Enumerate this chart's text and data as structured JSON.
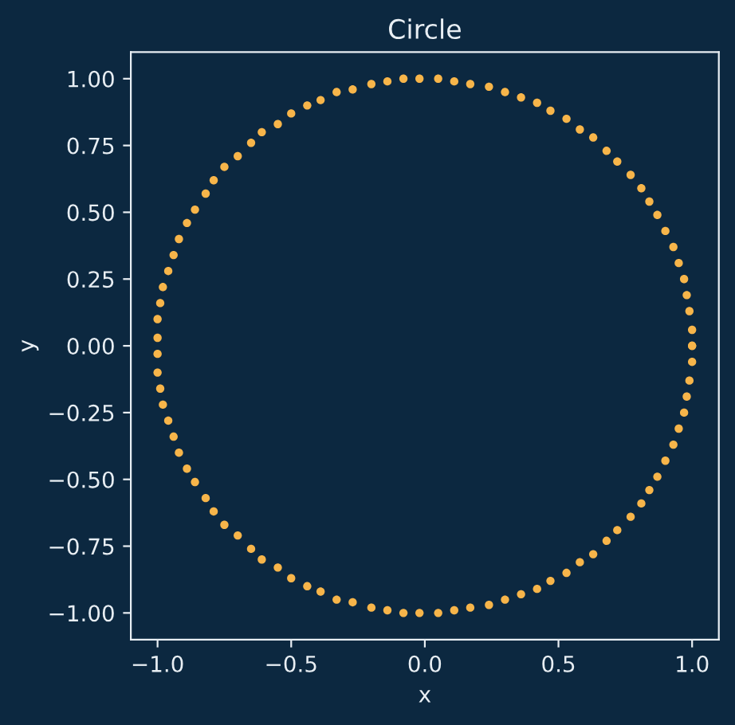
{
  "chart_data": {
    "type": "scatter",
    "title": "Circle",
    "xlabel": "x",
    "ylabel": "y",
    "series": [
      {
        "color": "#f7b54a",
        "x": [
          1.0,
          1.0,
          0.99,
          0.98,
          0.97,
          0.95,
          0.93,
          0.9,
          0.87,
          0.84,
          0.81,
          0.77,
          0.72,
          0.68,
          0.63,
          0.58,
          0.53,
          0.47,
          0.42,
          0.36,
          0.3,
          0.24,
          0.17,
          0.11,
          0.05,
          -0.02,
          -0.08,
          -0.14,
          -0.2,
          -0.27,
          -0.33,
          -0.39,
          -0.44,
          -0.5,
          -0.55,
          -0.61,
          -0.65,
          -0.7,
          -0.75,
          -0.79,
          -0.82,
          -0.86,
          -0.89,
          -0.92,
          -0.94,
          -0.96,
          -0.98,
          -0.99,
          -1.0,
          -1.0,
          -1.0,
          -1.0,
          -0.99,
          -0.98,
          -0.96,
          -0.94,
          -0.92,
          -0.89,
          -0.86,
          -0.82,
          -0.79,
          -0.75,
          -0.7,
          -0.65,
          -0.61,
          -0.55,
          -0.5,
          -0.44,
          -0.39,
          -0.33,
          -0.27,
          -0.2,
          -0.14,
          -0.08,
          -0.02,
          0.05,
          0.11,
          0.17,
          0.24,
          0.3,
          0.36,
          0.42,
          0.47,
          0.53,
          0.58,
          0.63,
          0.68,
          0.72,
          0.77,
          0.81,
          0.84,
          0.87,
          0.9,
          0.93,
          0.95,
          0.97,
          0.98,
          0.99,
          1.0,
          1.0
        ],
        "values": [
          0.0,
          0.06,
          0.13,
          0.19,
          0.25,
          0.31,
          0.37,
          0.43,
          0.49,
          0.54,
          0.59,
          0.64,
          0.69,
          0.73,
          0.78,
          0.81,
          0.85,
          0.88,
          0.91,
          0.93,
          0.95,
          0.97,
          0.98,
          0.99,
          1.0,
          1.0,
          1.0,
          0.99,
          0.98,
          0.96,
          0.95,
          0.92,
          0.9,
          0.87,
          0.83,
          0.8,
          0.76,
          0.71,
          0.67,
          0.62,
          0.57,
          0.51,
          0.46,
          0.4,
          0.34,
          0.28,
          0.22,
          0.16,
          0.1,
          0.03,
          -0.03,
          -0.1,
          -0.16,
          -0.22,
          -0.28,
          -0.34,
          -0.4,
          -0.46,
          -0.51,
          -0.57,
          -0.62,
          -0.67,
          -0.71,
          -0.76,
          -0.8,
          -0.83,
          -0.87,
          -0.9,
          -0.92,
          -0.95,
          -0.96,
          -0.98,
          -0.99,
          -1.0,
          -1.0,
          -1.0,
          -0.99,
          -0.98,
          -0.97,
          -0.95,
          -0.93,
          -0.91,
          -0.88,
          -0.85,
          -0.81,
          -0.78,
          -0.73,
          -0.69,
          -0.64,
          -0.59,
          -0.54,
          -0.49,
          -0.43,
          -0.37,
          -0.31,
          -0.25,
          -0.19,
          -0.13,
          -0.06,
          0.0
        ]
      }
    ],
    "marker": "circle",
    "xlim": [
      -1.1,
      1.1
    ],
    "ylim": [
      -1.1,
      1.1
    ],
    "xticks": [
      {
        "value": -1.0,
        "label": "−1.0"
      },
      {
        "value": -0.5,
        "label": "−0.5"
      },
      {
        "value": 0.0,
        "label": "0.0"
      },
      {
        "value": 0.5,
        "label": "0.5"
      },
      {
        "value": 1.0,
        "label": "1.0"
      }
    ],
    "yticks": [
      {
        "value": -1.0,
        "label": "−1.00"
      },
      {
        "value": -0.75,
        "label": "−0.75"
      },
      {
        "value": -0.5,
        "label": "−0.50"
      },
      {
        "value": -0.25,
        "label": "−0.25"
      },
      {
        "value": 0.0,
        "label": "0.00"
      },
      {
        "value": 0.25,
        "label": "0.25"
      },
      {
        "value": 0.5,
        "label": "0.50"
      },
      {
        "value": 0.75,
        "label": "0.75"
      },
      {
        "value": 1.0,
        "label": "1.00"
      }
    ],
    "grid": false,
    "legend": false
  }
}
